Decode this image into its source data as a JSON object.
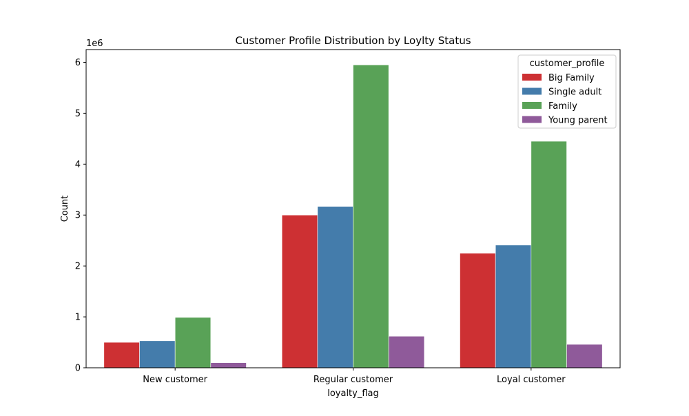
{
  "chart_data": {
    "type": "bar",
    "title": "Customer Profile Distribution by Loylty Status",
    "xlabel": "loyalty_flag",
    "ylabel": "Count",
    "y_offset_label": "1e6",
    "y_scale": 1000000,
    "ylim": [
      0,
      6250000
    ],
    "yticks": [
      0,
      1000000,
      2000000,
      3000000,
      4000000,
      5000000,
      6000000
    ],
    "ytick_labels": [
      "0",
      "1",
      "2",
      "3",
      "4",
      "5",
      "6"
    ],
    "categories": [
      "New customer",
      "Regular customer",
      "Loyal customer"
    ],
    "legend": {
      "title": "customer_profile",
      "placement": "upper right"
    },
    "grid": false,
    "series": [
      {
        "name": "Big Family",
        "color": "#cd3033",
        "values": [
          500000,
          3000000,
          2250000
        ]
      },
      {
        "name": "Single adult",
        "color": "#447cab",
        "values": [
          530000,
          3170000,
          2410000
        ]
      },
      {
        "name": "Family",
        "color": "#59a257",
        "values": [
          990000,
          5950000,
          4450000
        ]
      },
      {
        "name": "Young parent",
        "color": "#8f5a9a",
        "values": [
          100000,
          620000,
          460000
        ]
      }
    ]
  }
}
